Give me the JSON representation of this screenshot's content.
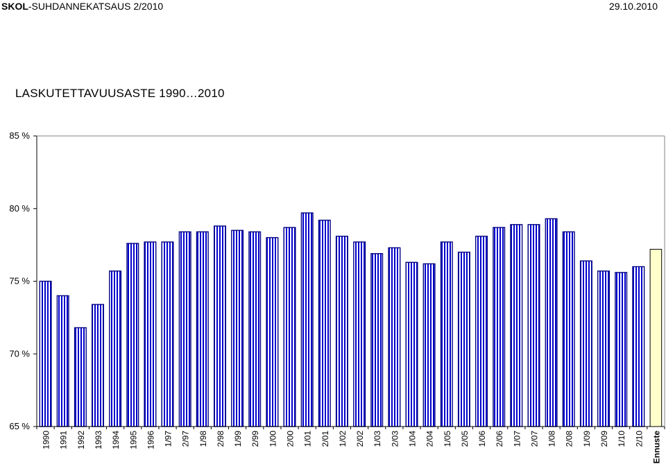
{
  "header": {
    "brand": "SKOL",
    "report": "-SUHDANNEKATSAUS 2/2010",
    "date": "29.10.2010"
  },
  "colors": {
    "bar_stroke": "#000080",
    "bar_stripe": "#0000cc",
    "forecast_fill": "#ffffcc",
    "axis": "#000000"
  },
  "chart_data": {
    "type": "bar",
    "title": "LASKUTETTAVUUSASTE 1990…2010",
    "xlabel": "",
    "ylabel": "",
    "ylim": [
      65,
      85
    ],
    "yticks": [
      {
        "value": 65,
        "label": "65 %"
      },
      {
        "value": 70,
        "label": "70 %"
      },
      {
        "value": 75,
        "label": "75 %"
      },
      {
        "value": 80,
        "label": "80 %"
      },
      {
        "value": 85,
        "label": "85 %"
      }
    ],
    "grid": false,
    "categories": [
      "1990",
      "1991",
      "1992",
      "1993",
      "1994",
      "1995",
      "1996",
      "1/97",
      "2/97",
      "1/98",
      "2/98",
      "1/99",
      "2/99",
      "1/00",
      "2/00",
      "1/01",
      "2/01",
      "1/02",
      "2/02",
      "1/03",
      "2/03",
      "1/04",
      "2/04",
      "1/05",
      "2/05",
      "1/06",
      "2/06",
      "1/07",
      "2/07",
      "1/08",
      "2/08",
      "1/09",
      "2/09",
      "1/10",
      "2/10",
      "Ennuste"
    ],
    "values": [
      75.0,
      74.0,
      71.8,
      73.4,
      75.7,
      77.6,
      77.7,
      77.7,
      78.4,
      78.4,
      78.8,
      78.5,
      78.4,
      78.0,
      78.7,
      79.7,
      79.2,
      78.1,
      77.7,
      76.9,
      77.3,
      76.3,
      76.2,
      77.7,
      77.0,
      78.1,
      78.7,
      78.9,
      78.9,
      79.3,
      78.4,
      76.4,
      75.7,
      75.6,
      76.0,
      77.2
    ],
    "forecast_index": 35
  }
}
